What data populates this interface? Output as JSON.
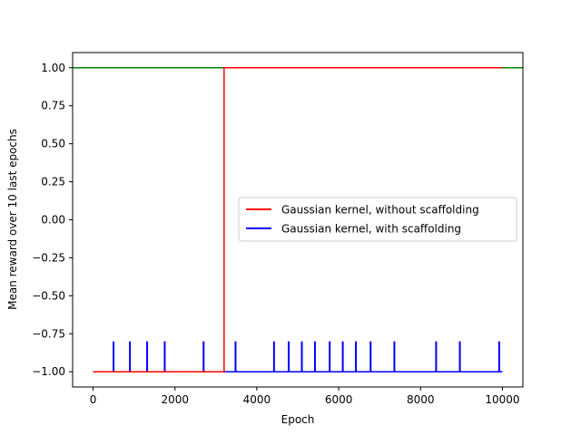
{
  "chart_data": {
    "type": "line",
    "xlabel": "Epoch",
    "ylabel": "Mean reward over 10 last epochs",
    "xlim": [
      -500,
      10500
    ],
    "ylim": [
      -1.1,
      1.1
    ],
    "xticks": [
      0,
      2000,
      4000,
      6000,
      8000,
      10000
    ],
    "yticks": [
      -1.0,
      -0.75,
      -0.5,
      -0.25,
      0.0,
      0.25,
      0.5,
      0.75,
      1.0
    ],
    "ytick_labels": [
      "−1.00",
      "−0.75",
      "−0.50",
      "−0.25",
      "0.00",
      "0.25",
      "0.50",
      "0.75",
      "1.00"
    ],
    "reference_line": {
      "y": 1.0,
      "color": "#008000"
    },
    "legend_position": "center-right",
    "series": [
      {
        "name": "Gaussian kernel, without scaffolding",
        "color": "#ff0000",
        "x": [
          0,
          3200,
          3200,
          10000
        ],
        "y": [
          -1.0,
          -1.0,
          1.0,
          1.0
        ]
      },
      {
        "name": "Gaussian kernel, with scaffolding",
        "color": "#0000ff",
        "baseline": -1.0,
        "x_range": [
          0,
          10000
        ],
        "spike_value": -0.8,
        "spike_epochs": [
          500,
          900,
          1320,
          1750,
          2700,
          3480,
          4420,
          4780,
          5100,
          5420,
          5780,
          6100,
          6420,
          6780,
          7360,
          8380,
          8960,
          9920
        ]
      }
    ]
  }
}
